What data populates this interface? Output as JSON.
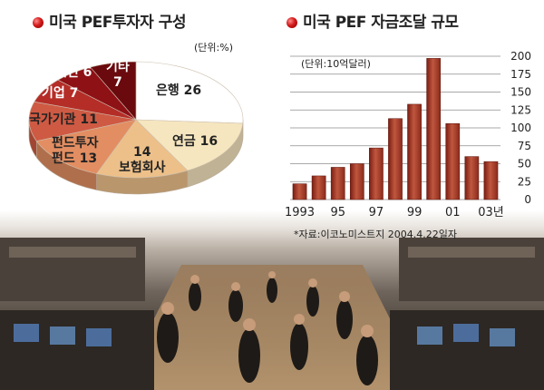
{
  "photo": {
    "description_icon": "trading-floor-photo"
  },
  "chart_data": [
    {
      "type": "pie",
      "title": "미국 PEF투자자 구성",
      "unit": "(단위:%)",
      "slices": [
        {
          "label": "은행",
          "value": 26,
          "color": "#ffffff"
        },
        {
          "label": "연금",
          "value": 16,
          "color": "#f6e6bf"
        },
        {
          "label": "보험회사",
          "value": 14,
          "color": "#edc08a"
        },
        {
          "label": "펀드투자 펀드",
          "value": 13,
          "color": "#e28e62"
        },
        {
          "label": "국가기관",
          "value": 11,
          "color": "#cf5a43"
        },
        {
          "label": "기업",
          "value": 7,
          "color": "#b52d27"
        },
        {
          "label": "개인",
          "value": 6,
          "color": "#8e1116"
        },
        {
          "label": "기타",
          "value": 7,
          "color": "#6a0a0e"
        }
      ],
      "labels": {
        "bank": {
          "name": "은행",
          "value": "26"
        },
        "pension": {
          "name": "연금",
          "value": "16"
        },
        "insurance": {
          "name": "보험회사",
          "value": "14"
        },
        "fof_line1": "펀드투자",
        "fof_line2_name": "펀드",
        "fof_value": "13",
        "gov": {
          "name": "국가기관",
          "value": "11"
        },
        "corp": {
          "name": "기업",
          "value": "7"
        },
        "indiv": {
          "name": "개인",
          "value": "6"
        },
        "etc": {
          "name": "기타",
          "value": "7"
        }
      }
    },
    {
      "type": "bar",
      "title": "미국 PEF 자금조달 규모",
      "unit": "(단위:10억달러)",
      "x": [
        1993,
        1994,
        1995,
        1996,
        1997,
        1998,
        1999,
        2000,
        2001,
        2002,
        2003
      ],
      "values": [
        22,
        33,
        45,
        50,
        72,
        113,
        133,
        197,
        106,
        60,
        53
      ],
      "ylim": [
        0,
        200
      ],
      "yticks": [
        "0",
        "25",
        "50",
        "75",
        "100",
        "125",
        "150",
        "175",
        "200"
      ],
      "xtick_labels": [
        {
          "index": 0,
          "label": "1993"
        },
        {
          "index": 2,
          "label": "95"
        },
        {
          "index": 4,
          "label": "97"
        },
        {
          "index": 6,
          "label": "99"
        },
        {
          "index": 8,
          "label": "01"
        },
        {
          "index": 10,
          "label": "03년"
        }
      ],
      "grid": true,
      "source": "*자료:이코노미스트지 2004.4.22일자"
    }
  ]
}
